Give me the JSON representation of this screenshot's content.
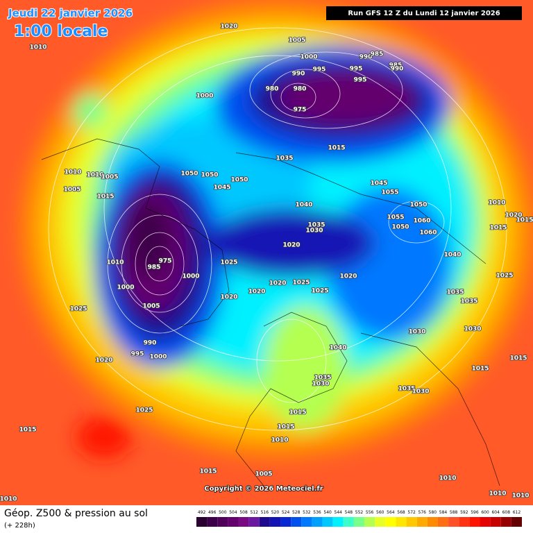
{
  "header": {
    "date": "Jeudi 22 janvier 2026",
    "time": "1:00 locale",
    "run": "Run GFS 12 Z du Lundi 12 janvier 2026"
  },
  "footer": {
    "title": "Géop. Z500 & pression au sol",
    "lead": "(+ 228h)",
    "copyright": "Copyright © 2026 Meteociel.fr"
  },
  "colorbar": {
    "ticks": [
      492,
      496,
      500,
      504,
      508,
      512,
      516,
      520,
      524,
      528,
      532,
      536,
      540,
      544,
      548,
      552,
      556,
      560,
      564,
      568,
      572,
      576,
      580,
      584,
      588,
      592,
      596,
      600,
      604,
      608,
      612
    ],
    "colors": [
      "#2a0030",
      "#3c0048",
      "#50005a",
      "#64006e",
      "#780a82",
      "#6a1aa0",
      "#1e0a8c",
      "#1414b4",
      "#0a28d2",
      "#0050f0",
      "#0078ff",
      "#00a0ff",
      "#00c8ff",
      "#00f0ff",
      "#3cffc8",
      "#78ff8c",
      "#b4ff50",
      "#e6ff28",
      "#ffff00",
      "#ffe600",
      "#ffc800",
      "#ffaa00",
      "#ff8c00",
      "#ff6e14",
      "#ff5028",
      "#ff3214",
      "#ff1400",
      "#e60000",
      "#c80000",
      "#960000",
      "#640000"
    ]
  },
  "isobar_labels": [
    "1020",
    "1010",
    "1005",
    "1000",
    "990",
    "985",
    "995",
    "995",
    "995",
    "990",
    "985",
    "990",
    "980",
    "980",
    "975",
    "1000",
    "1015",
    "1035",
    "1010",
    "1010",
    "1005",
    "1050",
    "1050",
    "1050",
    "1045",
    "1045",
    "1055",
    "1005",
    "1015",
    "1040",
    "1050",
    "1010",
    "1020",
    "1015",
    "1055",
    "1060",
    "1050",
    "1015",
    "1060",
    "1035",
    "1030",
    "1020",
    "1040",
    "1010",
    "1025",
    "985",
    "975",
    "1000",
    "1025",
    "1020",
    "1020",
    "1025",
    "1020",
    "1025",
    "1000",
    "1020",
    "1035",
    "1035",
    "1005",
    "1025",
    "1030",
    "1030",
    "990",
    "1040",
    "995",
    "1000",
    "1020",
    "1015",
    "1015",
    "1035",
    "1030",
    "1035",
    "1030",
    "1025",
    "1015",
    "1015",
    "1015",
    "1010",
    "1015",
    "1005",
    "1010",
    "1010",
    "1010",
    "1010"
  ]
}
